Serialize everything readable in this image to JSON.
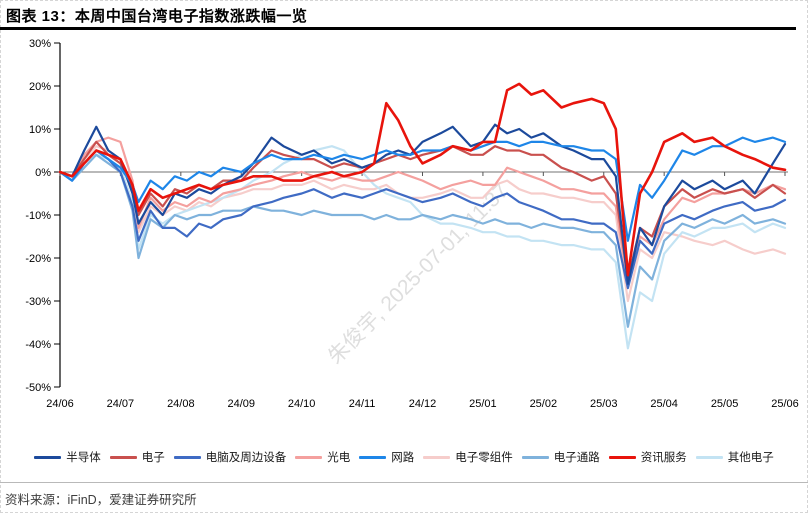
{
  "header": {
    "title": "图表 13：本周中国台湾电子指数涨跌幅一览"
  },
  "watermark": {
    "text": "朱俊宇, 2025-07-01, 11:37"
  },
  "footer": {
    "source": "资料来源：iFinD，爱建证券研究所"
  },
  "chart_data": {
    "type": "line",
    "title": "本周中国台湾电子指数涨跌幅一览",
    "legend_position": "bottom",
    "grid": false,
    "zero_line": true,
    "ylim": [
      -50,
      30
    ],
    "y_tick_labels": [
      "30%",
      "20%",
      "10%",
      "0%",
      "-10%",
      "-20%",
      "-30%",
      "-40%",
      "-50%"
    ],
    "y_tick_values": [
      30,
      20,
      10,
      0,
      -10,
      -20,
      -30,
      -40,
      -50
    ],
    "x_tick_labels": [
      "24/06",
      "24/07",
      "24/08",
      "24/09",
      "24/10",
      "24/11",
      "24/12",
      "25/01",
      "25/02",
      "25/03",
      "25/04",
      "25/05",
      "25/06"
    ],
    "x_months": [
      0,
      0.2,
      0.4,
      0.6,
      0.8,
      1,
      1.2,
      1.3,
      1.5,
      1.7,
      1.9,
      2.1,
      2.3,
      2.5,
      2.7,
      3,
      3.2,
      3.5,
      3.7,
      4,
      4.2,
      4.5,
      4.7,
      5,
      5.2,
      5.4,
      5.6,
      5.8,
      6,
      6.3,
      6.5,
      6.8,
      7,
      7.2,
      7.4,
      7.6,
      7.8,
      8,
      8.3,
      8.5,
      8.8,
      9,
      9.2,
      9.4,
      9.6,
      9.8,
      10,
      10.3,
      10.5,
      10.8,
      11,
      11.3,
      11.5,
      11.8,
      12
    ],
    "unit": "percent",
    "draw_order": [
      5,
      8,
      6,
      3,
      2,
      1,
      0,
      4,
      7
    ],
    "series": [
      {
        "name": "半导体",
        "color": "#1c4a9c",
        "width": 2.2,
        "values": [
          0,
          -1,
          5,
          10.5,
          5,
          3,
          -5,
          -12,
          -7,
          -10,
          -5,
          -6,
          -4,
          -5,
          -3,
          -1,
          2,
          8,
          6,
          4,
          5,
          2,
          3,
          1,
          2,
          4,
          5,
          4,
          7,
          9,
          10.5,
          6,
          7,
          11,
          9,
          10,
          8,
          9,
          6,
          5,
          3,
          3,
          -1,
          -26,
          -13,
          -17,
          -8,
          -2,
          -4,
          -2,
          -4,
          -2,
          -5,
          2,
          6.5
        ]
      },
      {
        "name": "电子",
        "color": "#c9504e",
        "width": 2.2,
        "values": [
          0,
          -1,
          3,
          7,
          4,
          2,
          -4,
          -10,
          -5,
          -8,
          -4,
          -5,
          -3,
          -4,
          -2,
          -2,
          1,
          5,
          4,
          3,
          3,
          1,
          2,
          1,
          2,
          3,
          4,
          3,
          4,
          5,
          6,
          4,
          4,
          6,
          5,
          5,
          4,
          4,
          1,
          0,
          -2,
          -1,
          -5,
          -25,
          -13,
          -15,
          -8,
          -4,
          -6,
          -4,
          -5,
          -4,
          -6,
          -3,
          -5
        ]
      },
      {
        "name": "电脑及周边设备",
        "color": "#3f6bc4",
        "width": 2.2,
        "values": [
          0,
          -2,
          2,
          5,
          3,
          0,
          -8,
          -16,
          -9,
          -13,
          -13,
          -15,
          -12,
          -13,
          -11,
          -10,
          -8,
          -7,
          -6,
          -5,
          -4,
          -6,
          -5,
          -6,
          -5,
          -4,
          -5,
          -6,
          -7,
          -6,
          -5,
          -7,
          -8,
          -6,
          -5,
          -7,
          -8,
          -9,
          -11,
          -11,
          -12,
          -12,
          -14,
          -27,
          -16,
          -19,
          -12,
          -10,
          -11,
          -9,
          -8,
          -7,
          -9,
          -8,
          -6.5
        ]
      },
      {
        "name": "光电",
        "color": "#f4a09e",
        "width": 2.2,
        "values": [
          0,
          -1,
          4,
          7,
          8,
          7,
          -2,
          -13,
          -6,
          -9,
          -7,
          -8,
          -6,
          -7,
          -5,
          -4,
          -3,
          -2,
          -1,
          0,
          -1,
          -2,
          -1,
          -2,
          -2,
          -1,
          0,
          -1,
          -2,
          -4,
          -3,
          -2,
          -3,
          -3,
          1,
          0,
          -1,
          -2,
          -4,
          -4,
          -5,
          -5,
          -8,
          -26,
          -15,
          -17,
          -11,
          -6,
          -7,
          -5,
          -5,
          -4,
          -5,
          -3,
          -4
        ]
      },
      {
        "name": "网路",
        "color": "#1e86e8",
        "width": 2.2,
        "values": [
          0,
          -2,
          2,
          5,
          3,
          1,
          -3,
          -7,
          -2,
          -4,
          -1,
          -2,
          0,
          -1,
          1,
          0,
          2,
          4,
          3,
          3,
          4,
          3,
          4,
          3,
          4,
          5,
          4,
          4,
          5,
          5,
          6,
          5,
          6,
          7,
          7,
          6,
          7,
          7,
          6,
          6,
          5,
          5,
          3,
          -16,
          -3,
          -6,
          -2,
          5,
          4,
          6,
          6,
          8,
          7,
          8,
          7
        ]
      },
      {
        "name": "电子零组件",
        "color": "#f6cdcb",
        "width": 2.2,
        "values": [
          0,
          -1,
          3,
          6,
          5,
          3,
          -5,
          -14,
          -8,
          -10,
          -8,
          -9,
          -7,
          -8,
          -6,
          -5,
          -4,
          -4,
          -3,
          -3,
          -2,
          -4,
          -3,
          -4,
          -4,
          -3,
          -5,
          -6,
          -6,
          -5,
          -4,
          -6,
          -6,
          -3,
          -2,
          -4,
          -5,
          -5,
          -6,
          -6,
          -7,
          -7,
          -10,
          -30,
          -18,
          -20,
          -14,
          -15,
          -16,
          -17,
          -16,
          -18,
          -19,
          -18,
          -19
        ]
      },
      {
        "name": "电子通路",
        "color": "#7fb2dc",
        "width": 2.2,
        "values": [
          0,
          -2,
          1,
          4,
          2,
          0,
          -9,
          -20,
          -11,
          -13,
          -10,
          -11,
          -10,
          -10,
          -9,
          -9,
          -8,
          -9,
          -9,
          -10,
          -9,
          -10,
          -10,
          -10,
          -11,
          -10,
          -11,
          -11,
          -10,
          -11,
          -10,
          -11,
          -12,
          -11,
          -12,
          -12,
          -13,
          -12,
          -13,
          -13,
          -14,
          -14,
          -17,
          -36,
          -22,
          -25,
          -16,
          -12,
          -13,
          -11,
          -12,
          -10,
          -12,
          -11,
          -12
        ]
      },
      {
        "name": "资讯服务",
        "color": "#e8140c",
        "width": 2.6,
        "values": [
          0,
          -1,
          2,
          5,
          4,
          3,
          -3,
          -9,
          -4,
          -6,
          -5,
          -4,
          -3,
          -4,
          -3,
          -2,
          -1,
          -1,
          -2,
          -2,
          -1,
          0,
          -1,
          0,
          2,
          16,
          12,
          6,
          2,
          4,
          6,
          5,
          7,
          7,
          19,
          20.5,
          18,
          19,
          15,
          16,
          17,
          16,
          10,
          -24,
          -5,
          0,
          7,
          9,
          7,
          8,
          6,
          4,
          3,
          1,
          0.5
        ]
      },
      {
        "name": "其他电子",
        "color": "#c3e3f3",
        "width": 2.2,
        "values": [
          0,
          -2,
          2,
          4,
          3,
          1,
          -7,
          -18,
          -10,
          -12,
          -10,
          -9,
          -8,
          -7,
          -6,
          -4,
          -2,
          0,
          2,
          4,
          5,
          6,
          5,
          0,
          -3,
          -5,
          -6,
          -7,
          -10,
          -12,
          -12,
          -13,
          -14,
          -14,
          -15,
          -15,
          -16,
          -16,
          -17,
          -17,
          -18,
          -18,
          -21,
          -41,
          -28,
          -30,
          -19,
          -14,
          -15,
          -13,
          -13,
          -12,
          -14,
          -12,
          -13
        ]
      }
    ]
  }
}
